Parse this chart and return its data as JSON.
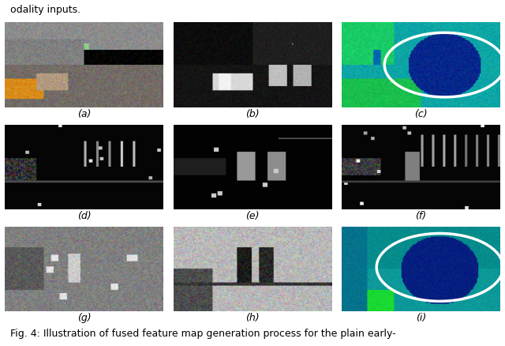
{
  "title_top": "odality inputs.",
  "caption": "Fig. 4: Illustration of fused feature map generation process for the plain early-",
  "labels": [
    "(a)",
    "(b)",
    "(c)",
    "(d)",
    "(e)",
    "(f)",
    "(g)",
    "(h)",
    "(i)"
  ],
  "nrows": 3,
  "ncols": 3,
  "fig_width": 6.4,
  "fig_height": 4.38,
  "background_color": "#ffffff",
  "label_fontsize": 9,
  "caption_fontsize": 9
}
